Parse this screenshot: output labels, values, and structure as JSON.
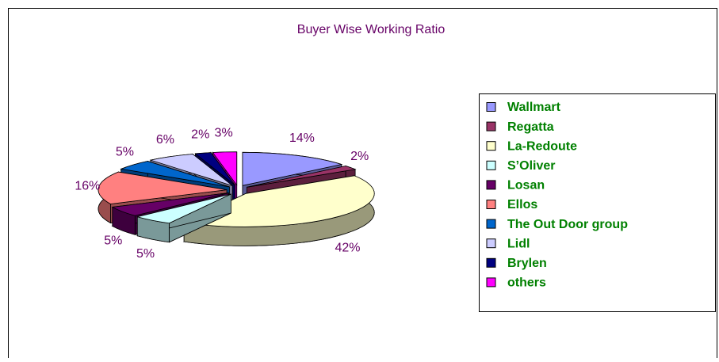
{
  "chart_data": {
    "type": "pie",
    "title": "Buyer Wise Working Ratio",
    "categories": [
      "Wallmart",
      "Regatta",
      "La-Redoute",
      "S’Oliver",
      "Losan",
      "Ellos",
      "The Out Door group",
      "Lidl",
      "Brylen",
      "others"
    ],
    "values": [
      14,
      2,
      42,
      5,
      5,
      16,
      5,
      6,
      2,
      3
    ],
    "value_labels": [
      "14%",
      "2%",
      "42%",
      "5%",
      "5%",
      "16%",
      "5%",
      "6%",
      "2%",
      "3%"
    ],
    "colors": [
      "#9999ff",
      "#993366",
      "#ffffcc",
      "#ccffff",
      "#660066",
      "#ff8080",
      "#0066cc",
      "#ccccff",
      "#000080",
      "#ff00ff"
    ],
    "legend": "right"
  }
}
